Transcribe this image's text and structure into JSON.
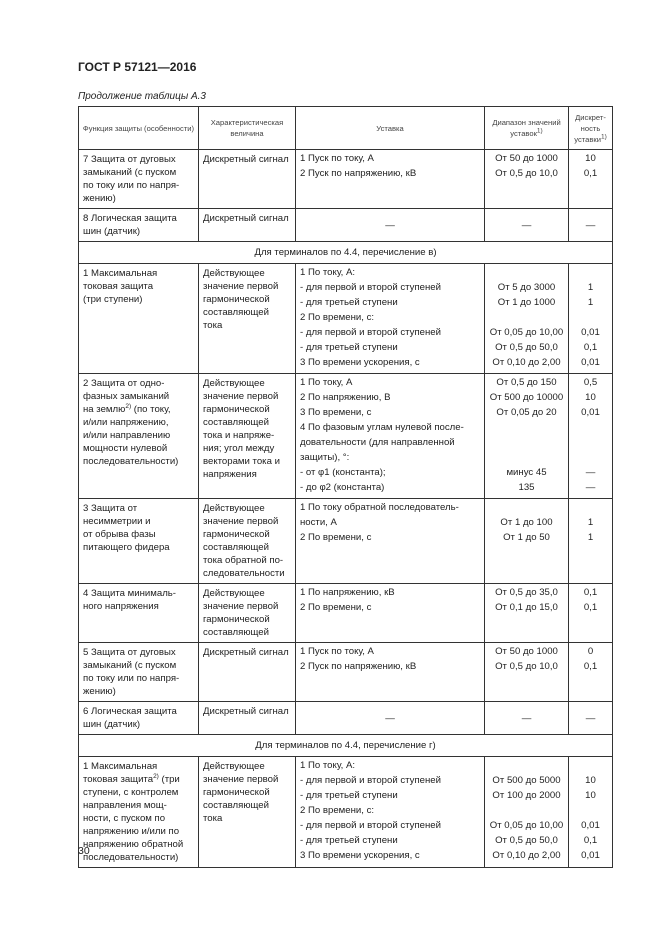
{
  "header": {
    "doc_title": "ГОСТ Р 57121—2016",
    "continuation": "Продолжение таблицы А.3"
  },
  "columns": [
    {
      "label": "Функция защиты (особенности)",
      "sup": ""
    },
    {
      "label": "Характеристическая величина",
      "sup": ""
    },
    {
      "label": "Уставка",
      "sup": ""
    },
    {
      "label": "Диапазон значений уставок",
      "sup": "1)"
    },
    {
      "label": "Дискрет-ность уставки",
      "sup": "1)"
    }
  ],
  "rows": [
    {
      "type": "data",
      "func": [
        "7 Защита от дуговых",
        "замыканий (с пуском",
        "по току или по напря-",
        "жению)"
      ],
      "char": [
        "Дискретный сигнал"
      ],
      "settings": [
        "1 Пуск по току, А",
        "2 Пуск по напряжению, кВ"
      ],
      "ranges": [
        "От 50 до 1000",
        "От 0,5 до 10,0"
      ],
      "steps": [
        "10",
        "0,1"
      ]
    },
    {
      "type": "dash",
      "func": [
        "8 Логическая защита",
        "шин (датчик)"
      ],
      "char": [
        "Дискретный сигнал"
      ],
      "dash": "—"
    },
    {
      "type": "section",
      "text": "Для терминалов по 4.4, перечисление в)"
    },
    {
      "type": "data",
      "func": [
        "1 Максимальная",
        "токовая защита",
        "(три ступени)"
      ],
      "char": [
        "Действующее",
        "значение первой",
        "гармонической",
        "составляющей",
        "тока"
      ],
      "settings": [
        "1 По току, А:",
        "-  для первой и второй ступеней",
        "-  для третьей ступени",
        "2 По времени, с:",
        "-  для первой и второй ступеней",
        "-  для третьей ступени",
        "3 По времени ускорения, с"
      ],
      "ranges": [
        "",
        "От 5 до 3000",
        "От 1 до 1000",
        "",
        "От 0,05 до 10,00",
        "От 0,5 до 50,0",
        "От 0,10 до 2,00"
      ],
      "steps": [
        "",
        "1",
        "1",
        "",
        "0,01",
        "0,1",
        "0,01"
      ]
    },
    {
      "type": "data",
      "func": [
        "2 Защита от одно-",
        "фазных замыканий",
        [
          "на землю",
          "2)",
          " (по току,"
        ],
        "и/или напряжению,",
        "и/или направлению",
        "мощности нулевой",
        "последовательности)"
      ],
      "char": [
        "Действующее",
        "значение первой",
        "гармонической",
        "составляющей",
        "тока и напряже-",
        "ния; угол между",
        "векторами тока и",
        "напряжения"
      ],
      "settings": [
        "1 По току, А",
        "2 По напряжению, В",
        "3 По времени, с",
        "4 По фазовым углам нулевой после-",
        "довательности  (для  направленной",
        "защиты), °:",
        "-  от φ1 (константа);",
        "-  до φ2 (константа)"
      ],
      "ranges": [
        "От 0,5 до 150",
        "От 500 до 10000",
        "От 0,05 до 20",
        "",
        "",
        "",
        "минус 45",
        "135"
      ],
      "steps": [
        "0,5",
        "10",
        "0,01",
        "",
        "",
        "",
        "—",
        "—"
      ]
    },
    {
      "type": "data",
      "func": [
        "3 Защита от",
        "несимметрии и",
        "от обрыва фазы",
        "питающего фидера"
      ],
      "char": [
        "Действующее",
        "значение первой",
        "гармонической",
        "составляющей",
        "тока обратной по-",
        "следовательности"
      ],
      "settings": [
        "1 По току обратной последователь-",
        "ности, А",
        "2 По времени, с"
      ],
      "ranges": [
        "",
        "От 1 до 100",
        "От 1 до 50"
      ],
      "steps": [
        "",
        "1",
        "1"
      ]
    },
    {
      "type": "data",
      "func": [
        "4 Защита минималь-",
        "ного напряжения"
      ],
      "char": [
        "Действующее",
        "значение первой",
        "гармонической",
        "составляющей"
      ],
      "settings": [
        "1 По напряжению, кВ",
        "2 По времени, с"
      ],
      "ranges": [
        "От 0,5 до 35,0",
        "От 0,1 до 15,0"
      ],
      "steps": [
        "0,1",
        "0,1"
      ]
    },
    {
      "type": "data",
      "func": [
        "5 Защита от дуговых",
        "замыканий (с пуском",
        "по току или по напря-",
        "жению)"
      ],
      "char": [
        "Дискретный сигнал"
      ],
      "settings": [
        "1 Пуск по току, А",
        "2 Пуск по напряжению, кВ"
      ],
      "ranges": [
        "От 50 до 1000",
        "От 0,5 до 10,0"
      ],
      "steps": [
        "0",
        "0,1"
      ]
    },
    {
      "type": "dash",
      "func": [
        "6 Логическая защита",
        "шин (датчик)"
      ],
      "char": [
        "Дискретный сигнал"
      ],
      "dash": "—"
    },
    {
      "type": "section",
      "text": "Для терминалов по 4.4, перечисление г)"
    },
    {
      "type": "data",
      "func": [
        "1 Максимальная",
        [
          "токовая защита",
          "2)",
          " (три"
        ],
        "ступени, с контролем",
        "направления мощ-",
        "ности, с пуском по",
        "напряжению и/или по",
        "напряжению обратной",
        "последовательности)"
      ],
      "char": [
        "Действующее",
        "значение первой",
        "гармонической",
        "составляющей",
        "тока"
      ],
      "settings": [
        "1 По току, А:",
        "-  для первой и второй ступеней",
        "-  для третьей ступени",
        "2 По времени, с:",
        "-  для первой и второй ступеней",
        "-  для третьей ступени",
        "3 По времени ускорения, с"
      ],
      "ranges": [
        "",
        "От 500 до 5000",
        "От 100 до 2000",
        "",
        "От 0,05 до 10,00",
        "От 0,5 до 50,0",
        "От 0,10 до 2,00"
      ],
      "steps": [
        "",
        "10",
        "10",
        "",
        "0,01",
        "0,1",
        "0,01"
      ]
    }
  ],
  "footer": {
    "page_number": "30"
  }
}
